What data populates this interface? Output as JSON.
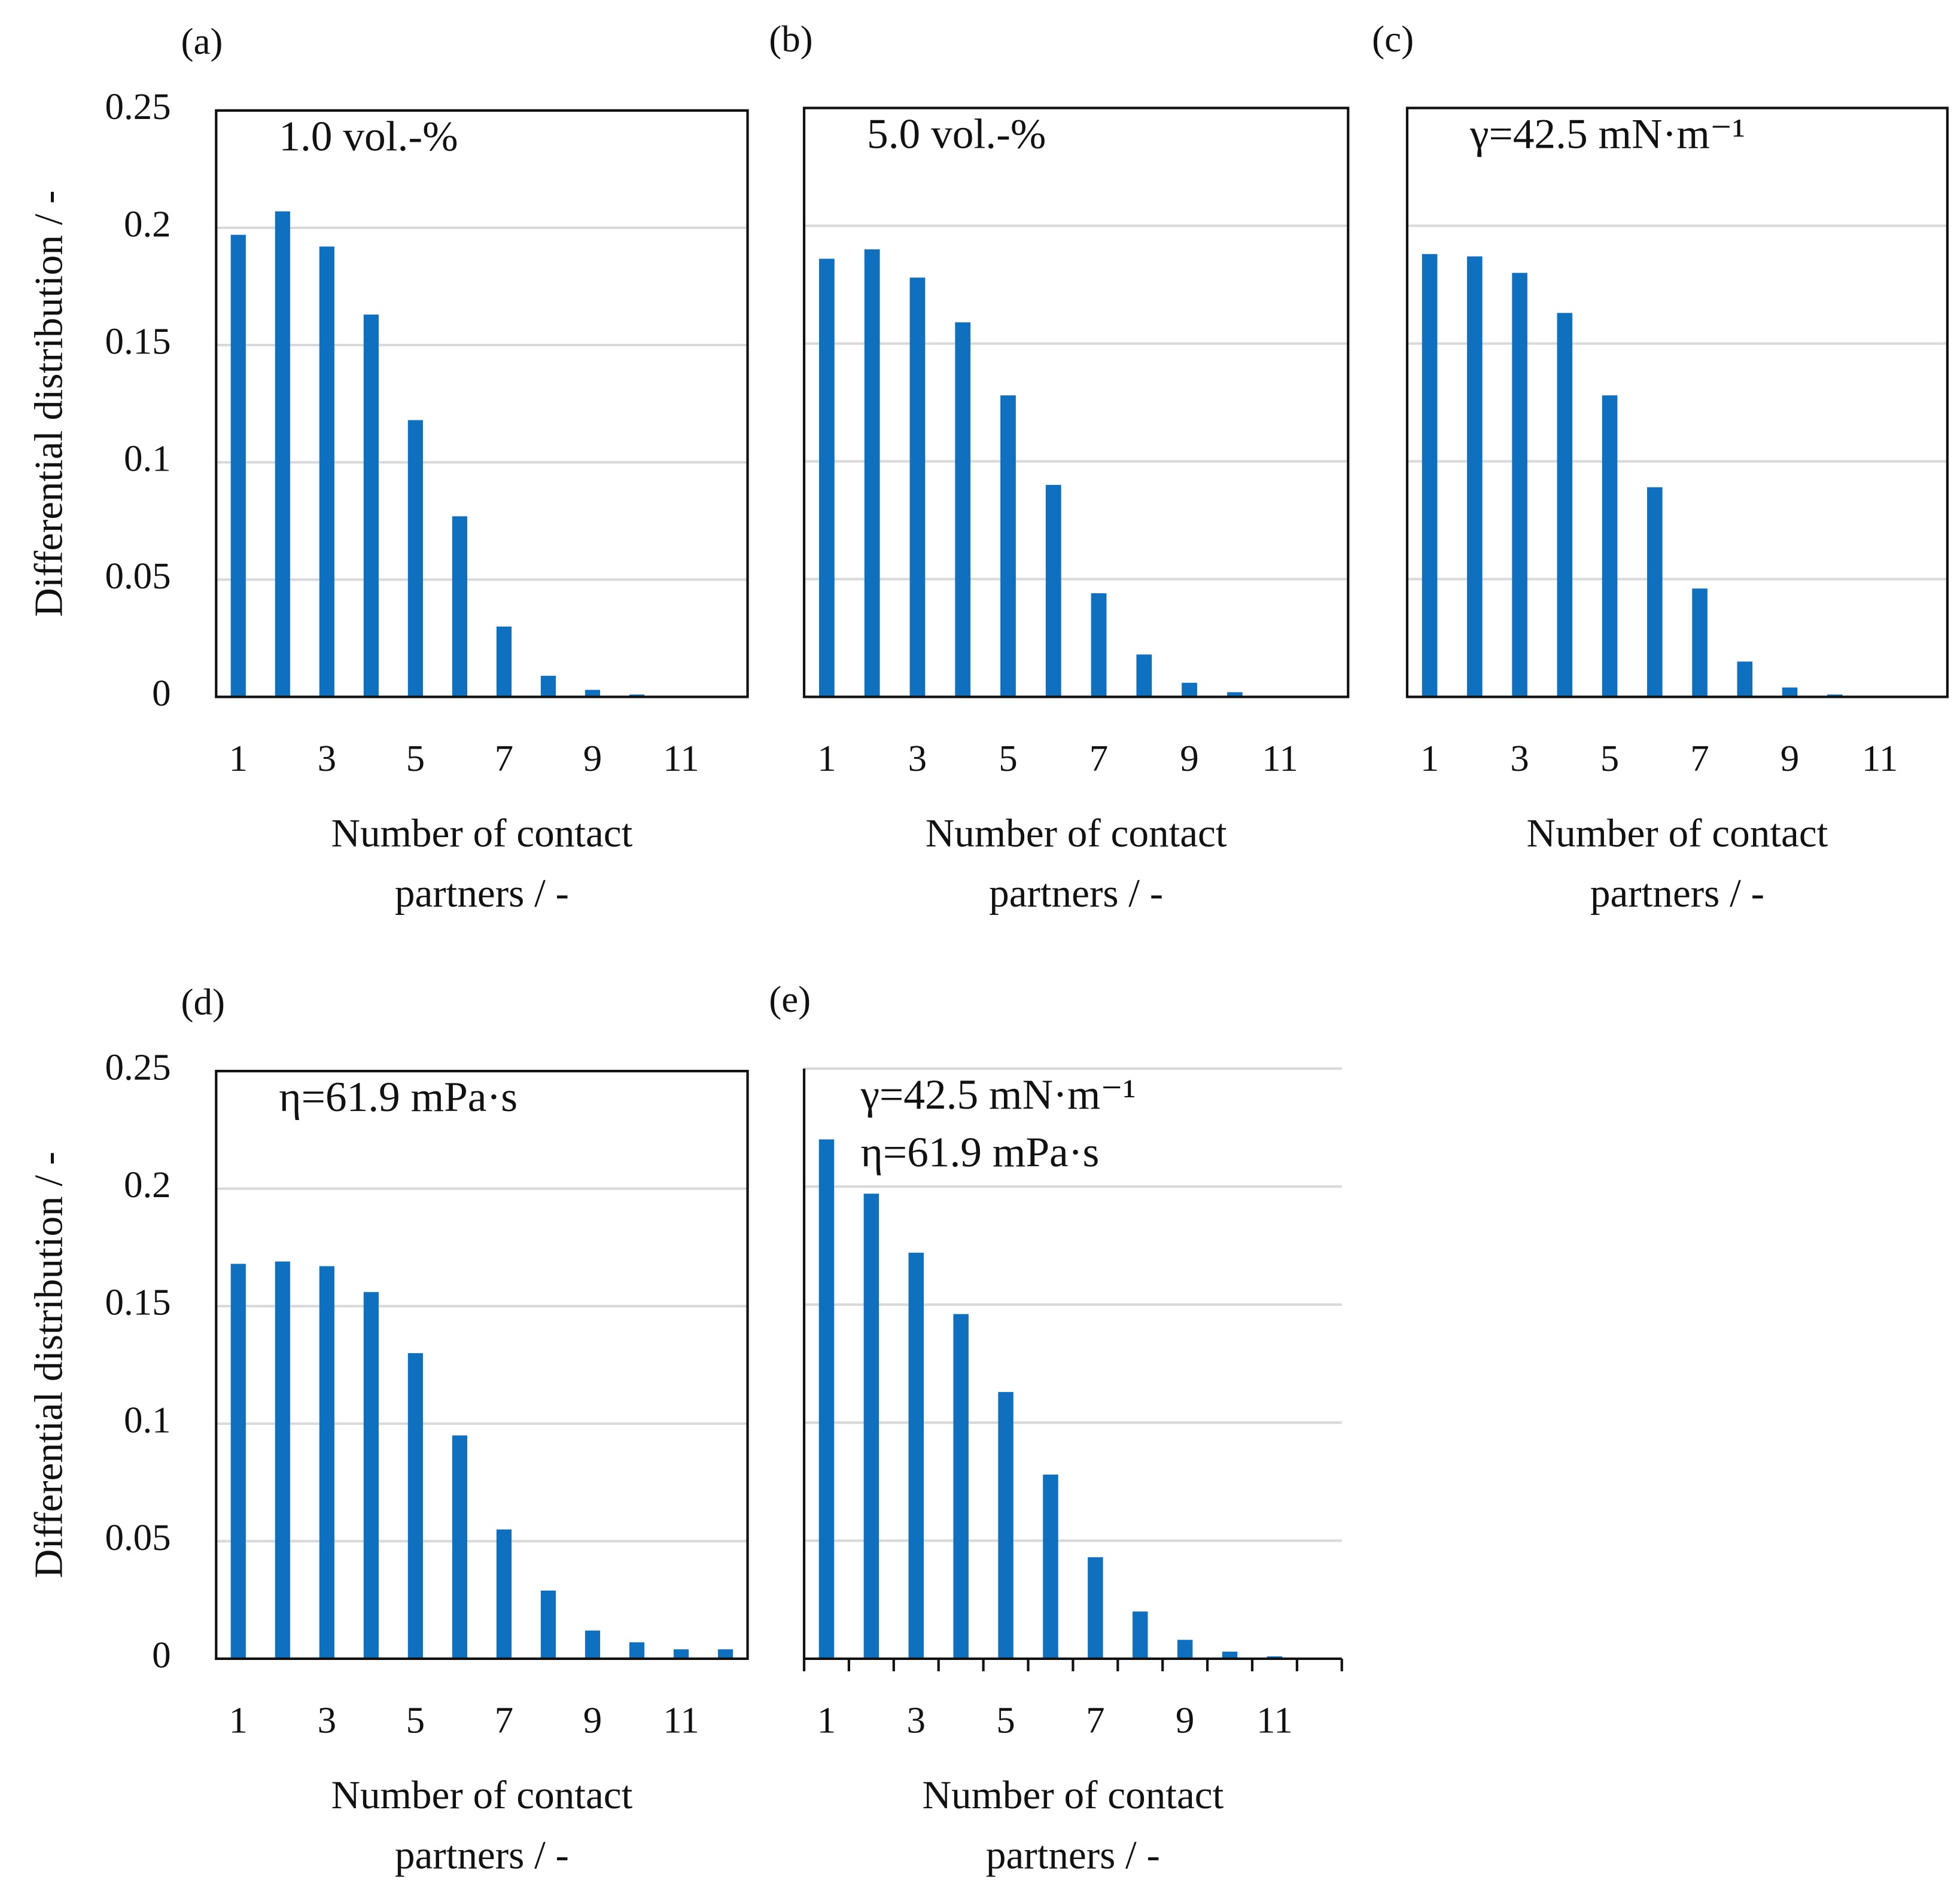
{
  "charts": [
    {
      "chart_data": {
        "type": "bar",
        "panel": "(a)",
        "annotations": [
          "1.0 vol.-%"
        ],
        "y_label": "Differential distribution / -",
        "x_label": "Number of contact partners / -",
        "categories": [
          1,
          null,
          3,
          null,
          5,
          null,
          7,
          null,
          9,
          null,
          11,
          null
        ],
        "values": [
          0.197,
          0.207,
          0.192,
          0.163,
          0.118,
          0.077,
          0.03,
          0.009,
          0.003,
          0.001,
          0,
          0
        ],
        "color": "#0f70c0",
        "ylim": [
          0,
          0.25
        ],
        "yticks": [
          0,
          0.05,
          0.1,
          0.15,
          0.2,
          0.25
        ],
        "ytick_labels": true,
        "grid": true,
        "frame": "box"
      }
    },
    {
      "chart_data": {
        "type": "bar",
        "panel": "(b)",
        "annotations": [
          "5.0 vol.-%"
        ],
        "x_label": "Number of contact partners / -",
        "categories": [
          1,
          null,
          3,
          null,
          5,
          null,
          7,
          null,
          9,
          null,
          11,
          null
        ],
        "values": [
          0.186,
          0.19,
          0.178,
          0.159,
          0.128,
          0.09,
          0.044,
          0.018,
          0.006,
          0.002,
          0,
          0
        ],
        "color": "#0f70c0",
        "ylim": [
          0,
          0.25
        ],
        "yticks": [
          0,
          0.05,
          0.1,
          0.15,
          0.2,
          0.25
        ],
        "ytick_labels": false,
        "grid": true,
        "frame": "box"
      }
    },
    {
      "chart_data": {
        "type": "bar",
        "panel": "(c)",
        "annotations": [
          "γ=42.5 mN·m⁻¹"
        ],
        "x_label": "Number of contact partners / -",
        "categories": [
          1,
          null,
          3,
          null,
          5,
          null,
          7,
          null,
          9,
          null,
          11,
          null
        ],
        "values": [
          0.188,
          0.187,
          0.18,
          0.163,
          0.128,
          0.089,
          0.046,
          0.015,
          0.004,
          0.001,
          0,
          0
        ],
        "color": "#0f70c0",
        "ylim": [
          0,
          0.25
        ],
        "yticks": [
          0,
          0.05,
          0.1,
          0.15,
          0.2,
          0.25
        ],
        "ytick_labels": false,
        "grid": true,
        "frame": "box"
      }
    },
    {
      "chart_data": {
        "type": "bar",
        "panel": "(d)",
        "annotations": [
          "η=61.9 mPa·s"
        ],
        "y_label": "Differential distribution / -",
        "x_label": "Number of contact partners / -",
        "categories": [
          1,
          null,
          3,
          null,
          5,
          null,
          7,
          null,
          9,
          null,
          11,
          null
        ],
        "values": [
          0.168,
          0.169,
          0.167,
          0.156,
          0.13,
          0.095,
          0.055,
          0.029,
          0.012,
          0.007,
          0.004,
          0.004
        ],
        "color": "#0f70c0",
        "ylim": [
          0,
          0.25
        ],
        "yticks": [
          0,
          0.05,
          0.1,
          0.15,
          0.2,
          0.25
        ],
        "ytick_labels": true,
        "grid": true,
        "frame": "box"
      }
    },
    {
      "chart_data": {
        "type": "bar",
        "panel": "(e)",
        "annotations": [
          "γ=42.5 mN·m⁻¹",
          "η=61.9 mPa·s"
        ],
        "x_label": "Number of contact partners / -",
        "categories": [
          1,
          null,
          3,
          null,
          5,
          null,
          7,
          null,
          9,
          null,
          11,
          null
        ],
        "values": [
          0.22,
          0.197,
          0.172,
          0.146,
          0.113,
          0.078,
          0.043,
          0.02,
          0.008,
          0.003,
          0.001,
          0
        ],
        "color": "#0f70c0",
        "ylim": [
          0,
          0.25
        ],
        "yticks": [
          0,
          0.05,
          0.1,
          0.15,
          0.2,
          0.25
        ],
        "ytick_labels": false,
        "grid": true,
        "frame": "axes"
      }
    }
  ]
}
